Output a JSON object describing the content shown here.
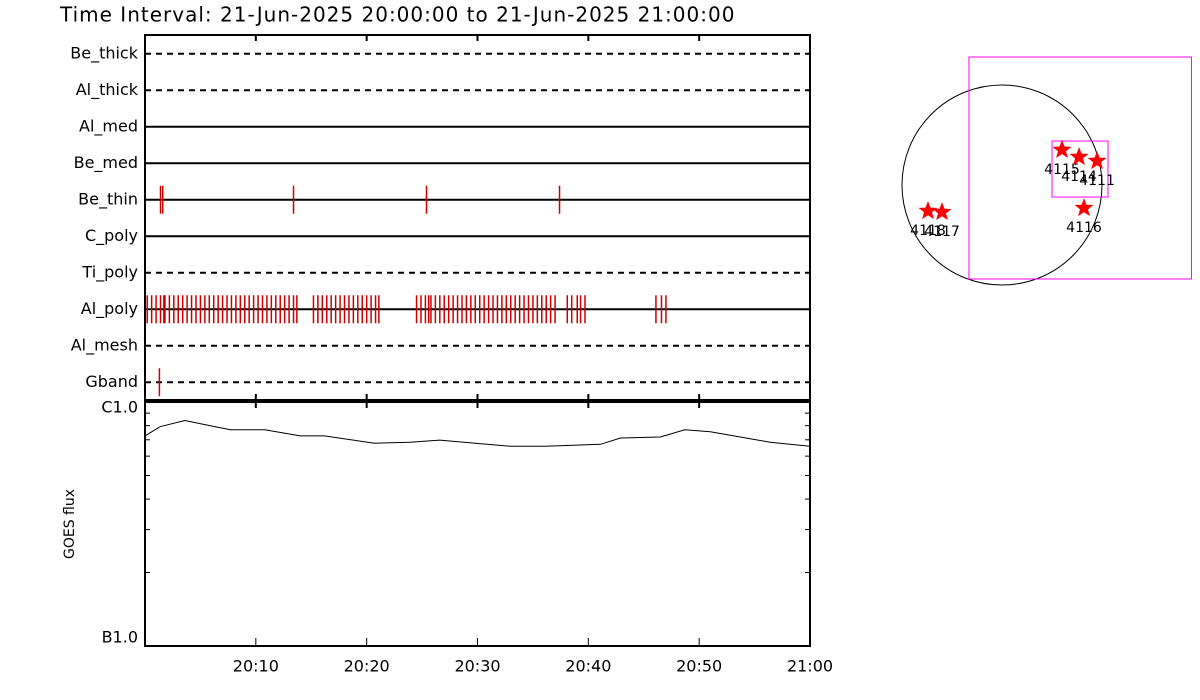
{
  "title": "Time Interval: 21-Jun-2025 20:00:00 to 21-Jun-2025 21:00:00",
  "chart_data": [
    {
      "type": "timeline",
      "color": "#cc0000",
      "xlim": [
        0,
        60
      ],
      "series": [
        {
          "name": "Be_thick",
          "line": "dashed",
          "values": []
        },
        {
          "name": "Al_thick",
          "line": "dashed",
          "values": []
        },
        {
          "name": "Al_med",
          "line": "solid",
          "values": []
        },
        {
          "name": "Be_med",
          "line": "solid",
          "values": []
        },
        {
          "name": "Be_thin",
          "line": "solid",
          "values": [
            1.4,
            1.6,
            13.4,
            25.4,
            37.4
          ]
        },
        {
          "name": "C_poly",
          "line": "solid",
          "values": []
        },
        {
          "name": "Ti_poly",
          "line": "dashed",
          "values": []
        },
        {
          "name": "Al_poly",
          "line": "solid",
          "values": [
            0.2,
            0.6,
            1.0,
            1.4,
            1.7,
            1.8,
            2.2,
            2.6,
            3.0,
            3.4,
            3.8,
            4.2,
            4.6,
            5.0,
            5.4,
            5.8,
            6.2,
            6.6,
            7.0,
            7.4,
            7.8,
            8.2,
            8.6,
            9.0,
            9.4,
            9.8,
            10.2,
            10.6,
            11.0,
            11.4,
            11.8,
            12.2,
            12.6,
            13.0,
            13.4,
            13.7,
            15.2,
            15.6,
            16.0,
            16.4,
            16.8,
            17.2,
            17.6,
            18.0,
            18.4,
            18.8,
            19.2,
            19.6,
            20.0,
            20.4,
            20.8,
            21.1,
            24.5,
            24.9,
            25.3,
            25.6,
            25.8,
            26.2,
            26.6,
            27.0,
            27.4,
            27.8,
            28.2,
            28.6,
            29.0,
            29.4,
            29.8,
            30.2,
            30.6,
            31.0,
            31.4,
            31.8,
            32.2,
            32.6,
            33.0,
            33.4,
            33.8,
            34.2,
            34.6,
            35.0,
            35.4,
            35.8,
            36.2,
            36.6,
            37.0,
            38.1,
            38.5,
            39.0,
            39.3,
            39.7,
            46.1,
            46.6,
            47.0
          ]
        },
        {
          "name": "Al_mesh",
          "line": "dashed",
          "values": []
        },
        {
          "name": "Gband",
          "line": "dashed",
          "values": [
            1.3
          ]
        }
      ]
    },
    {
      "type": "line",
      "y_label": "GOES flux",
      "color": "#000000",
      "log": true,
      "xlim": [
        0,
        60
      ],
      "xticks": [
        {
          "value": 10,
          "label": "20:10"
        },
        {
          "value": 20,
          "label": "20:20"
        },
        {
          "value": 30,
          "label": "20:30"
        },
        {
          "value": 40,
          "label": "20:40"
        },
        {
          "value": 50,
          "label": "20:50"
        },
        {
          "value": 60,
          "label": "21:00"
        }
      ],
      "ylim": [
        1e-07,
        1e-06
      ],
      "yticks": [
        {
          "value": 1e-07,
          "label": "B1.0"
        },
        {
          "value": 1e-06,
          "label": "C1.0"
        }
      ],
      "yminorticks": [
        2e-07,
        3e-07,
        4e-07,
        5e-07,
        6e-07,
        7e-07,
        8e-07,
        9e-07
      ],
      "x": [
        0,
        1.35,
        3.6,
        5.4,
        7.7,
        10.8,
        14.0,
        16.2,
        20.7,
        23.9,
        26.6,
        29.8,
        32.9,
        36.1,
        41.1,
        42.9,
        46.5,
        48.7,
        51.0,
        53.7,
        56.4,
        60
      ],
      "values": [
        7.26e-07,
        7.92e-07,
        8.4e-07,
        8.08e-07,
        7.69e-07,
        7.69e-07,
        7.26e-07,
        7.26e-07,
        6.78e-07,
        6.84e-07,
        6.98e-07,
        6.78e-07,
        6.59e-07,
        6.59e-07,
        6.71e-07,
        7.12e-07,
        7.19e-07,
        7.69e-07,
        7.55e-07,
        7.19e-07,
        6.84e-07,
        6.59e-07
      ]
    },
    {
      "type": "map",
      "radius": 950,
      "circle_color": "#000000",
      "point_color": "#ff0000",
      "boxes": [
        {
          "x": [
            -314,
            1800
          ],
          "y": [
            -893,
            1216
          ],
          "color": "#ff00ff"
        },
        {
          "x": [
            475,
            1007
          ],
          "y": [
            -114,
            418
          ],
          "color": "#ff00ff"
        }
      ],
      "points": [
        {
          "label": "4115",
          "x": 570,
          "y": 333
        },
        {
          "label": "4114",
          "x": 732,
          "y": 266
        },
        {
          "label": "4111",
          "x": 903,
          "y": 228
        },
        {
          "label": "4116",
          "x": 779,
          "y": -219
        },
        {
          "label": "4118",
          "x": -703,
          "y": -247
        },
        {
          "label": "4117",
          "x": -570,
          "y": -257
        }
      ]
    }
  ]
}
